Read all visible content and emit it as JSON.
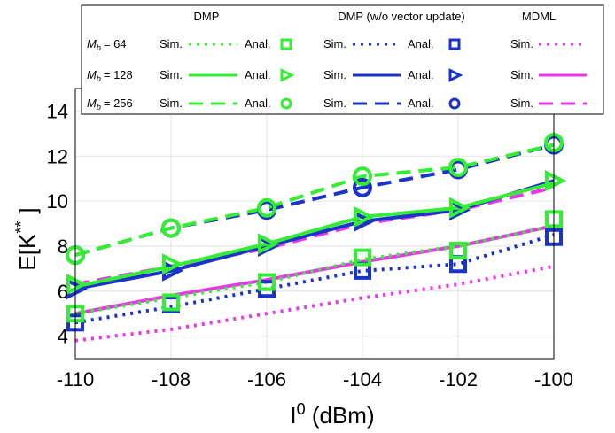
{
  "chart_data": {
    "type": "line",
    "xlabel": "I",
    "xlabel_superscript": "0",
    "xlabel_unit": " (dBm)",
    "ylabel": "E[K",
    "ylabel_superscript": "**",
    "ylabel_close": "]",
    "x": [
      -110,
      -108,
      -106,
      -104,
      -102,
      -100
    ],
    "x_ticks": [
      "-110",
      "-108",
      "-106",
      "-104",
      "-102",
      "-100"
    ],
    "y_ticks": [
      "4",
      "6",
      "8",
      "10",
      "12",
      "14"
    ],
    "xlim": [
      -110,
      -100
    ],
    "ylim": [
      3,
      15
    ],
    "grid": true,
    "legend_position": "top",
    "legend": {
      "headers": [
        "DMP",
        "DMP (w/o vector update)",
        "MDML"
      ],
      "rows": [
        {
          "mb_label": "M",
          "mb_sub": "b",
          "mb_value": "= 64"
        },
        {
          "mb_label": "M",
          "mb_sub": "b",
          "mb_value": "= 128"
        },
        {
          "mb_label": "M",
          "mb_sub": "b",
          "mb_value": "= 256"
        }
      ],
      "sim_label": "Sim.",
      "anal_label": "Anal."
    },
    "colors": {
      "DMP": "#33ee33",
      "DMP (w/o vector update)": "#1a33cc",
      "MDML": "#ee33ee"
    },
    "series": [
      {
        "method": "DMP",
        "mb": 64,
        "kind": "sim",
        "dash": "dot",
        "values": [
          5.0,
          5.7,
          6.4,
          7.4,
          8.0,
          8.9
        ]
      },
      {
        "method": "DMP",
        "mb": 64,
        "kind": "anal",
        "marker": "square",
        "values": [
          5.0,
          5.5,
          6.4,
          7.5,
          7.8,
          9.2
        ]
      },
      {
        "method": "DMP",
        "mb": 128,
        "kind": "sim",
        "dash": "solid",
        "values": [
          6.2,
          7.1,
          8.1,
          9.3,
          9.7,
          10.8
        ]
      },
      {
        "method": "DMP",
        "mb": 128,
        "kind": "anal",
        "marker": "triangle",
        "values": [
          6.3,
          7.2,
          8.1,
          9.3,
          9.7,
          10.9
        ]
      },
      {
        "method": "DMP",
        "mb": 256,
        "kind": "sim",
        "dash": "dash",
        "values": [
          7.6,
          8.8,
          9.7,
          11.1,
          11.5,
          12.5
        ]
      },
      {
        "method": "DMP",
        "mb": 256,
        "kind": "anal",
        "marker": "circle",
        "values": [
          7.6,
          8.8,
          9.7,
          11.1,
          11.5,
          12.6
        ]
      },
      {
        "method": "DMP (w/o vector update)",
        "mb": 64,
        "kind": "sim",
        "dash": "dot",
        "values": [
          4.6,
          5.3,
          6.1,
          6.9,
          7.2,
          8.5
        ]
      },
      {
        "method": "DMP (w/o vector update)",
        "mb": 64,
        "kind": "anal",
        "marker": "square",
        "values": [
          4.6,
          5.4,
          6.1,
          6.9,
          7.2,
          8.4
        ]
      },
      {
        "method": "DMP (w/o vector update)",
        "mb": 128,
        "kind": "sim",
        "dash": "solid",
        "values": [
          6.1,
          6.9,
          8.0,
          9.1,
          9.6,
          10.9
        ]
      },
      {
        "method": "DMP (w/o vector update)",
        "mb": 128,
        "kind": "anal",
        "marker": "triangle",
        "values": [
          6.1,
          6.9,
          8.0,
          9.1,
          9.6,
          10.9
        ]
      },
      {
        "method": "DMP (w/o vector update)",
        "mb": 256,
        "kind": "sim",
        "dash": "dash",
        "values": [
          7.6,
          8.8,
          9.6,
          10.6,
          11.4,
          12.5
        ]
      },
      {
        "method": "DMP (w/o vector update)",
        "mb": 256,
        "kind": "anal",
        "marker": "circle",
        "values": [
          7.6,
          8.8,
          9.6,
          10.6,
          11.4,
          12.5
        ]
      },
      {
        "method": "MDML",
        "mb": 64,
        "kind": "sim",
        "dash": "dot",
        "values": [
          3.8,
          4.3,
          5.0,
          5.7,
          6.3,
          7.1
        ]
      },
      {
        "method": "MDML",
        "mb": 128,
        "kind": "sim",
        "dash": "solid",
        "values": [
          5.0,
          5.8,
          6.5,
          7.3,
          8.0,
          8.9
        ]
      },
      {
        "method": "MDML",
        "mb": 256,
        "kind": "sim",
        "dash": "dash",
        "values": [
          6.3,
          7.1,
          7.9,
          9.0,
          9.6,
          10.6
        ]
      }
    ]
  }
}
